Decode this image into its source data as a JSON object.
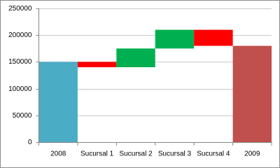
{
  "chart_data": {
    "type": "waterfall",
    "categories": [
      "2008",
      "Sucursal 1",
      "Sucursal 2",
      "Sucursal 3",
      "Sucursal 4",
      "2009"
    ],
    "values": [
      150000,
      -10000,
      35000,
      35000,
      -30000,
      180000
    ],
    "colors": [
      "#4bacc6",
      "#ff0000",
      "#00b050",
      "#00b050",
      "#ff0000",
      "#c0504d"
    ],
    "ylim": [
      0,
      250000
    ],
    "yticks": [
      0,
      50000,
      100000,
      150000,
      200000,
      250000
    ],
    "grid": true
  }
}
